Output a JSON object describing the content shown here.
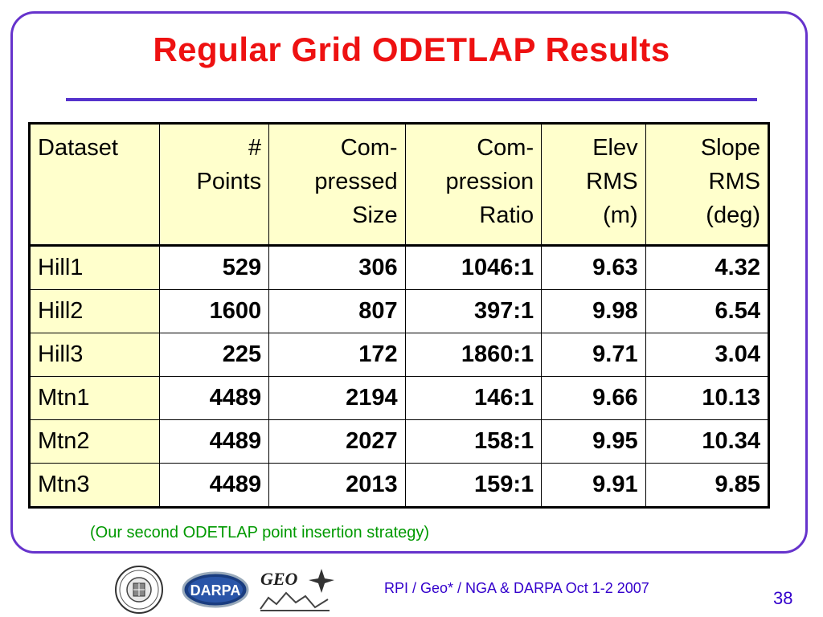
{
  "slide": {
    "title": "Regular Grid ODETLAP Results",
    "footnote": "(Our second ODETLAP point insertion strategy)",
    "footer": "RPI / Geo* /  NGA & DARPA  Oct 1-2 2007",
    "page_number": "38",
    "colors": {
      "title": "#ee1111",
      "frame": "#6633cc",
      "header_fill": "#ffffcc",
      "footnote": "#009900",
      "footer": "#3300cc"
    }
  },
  "logos": {
    "rpi_seal_icon": "rensselaer-seal",
    "darpa_badge": "DARPA",
    "geo_logo": "GEO"
  },
  "table": {
    "headers": [
      [
        "Dataset"
      ],
      [
        "#",
        "Points"
      ],
      [
        "Com-",
        "pressed",
        "Size"
      ],
      [
        "Com-",
        "pression",
        "Ratio"
      ],
      [
        "Elev",
        "RMS",
        "(m)"
      ],
      [
        "Slope",
        "RMS",
        "(deg)"
      ]
    ],
    "rows": [
      [
        "Hill1",
        "529",
        "306",
        "1046:1",
        "9.63",
        "4.32"
      ],
      [
        "Hill2",
        "1600",
        "807",
        "397:1",
        "9.98",
        "6.54"
      ],
      [
        "Hill3",
        "225",
        "172",
        "1860:1",
        "9.71",
        "3.04"
      ],
      [
        "Mtn1",
        "4489",
        "2194",
        "146:1",
        "9.66",
        "10.13"
      ],
      [
        "Mtn2",
        "4489",
        "2027",
        "158:1",
        "9.95",
        "10.34"
      ],
      [
        "Mtn3",
        "4489",
        "2013",
        "159:1",
        "9.91",
        "9.85"
      ]
    ]
  }
}
